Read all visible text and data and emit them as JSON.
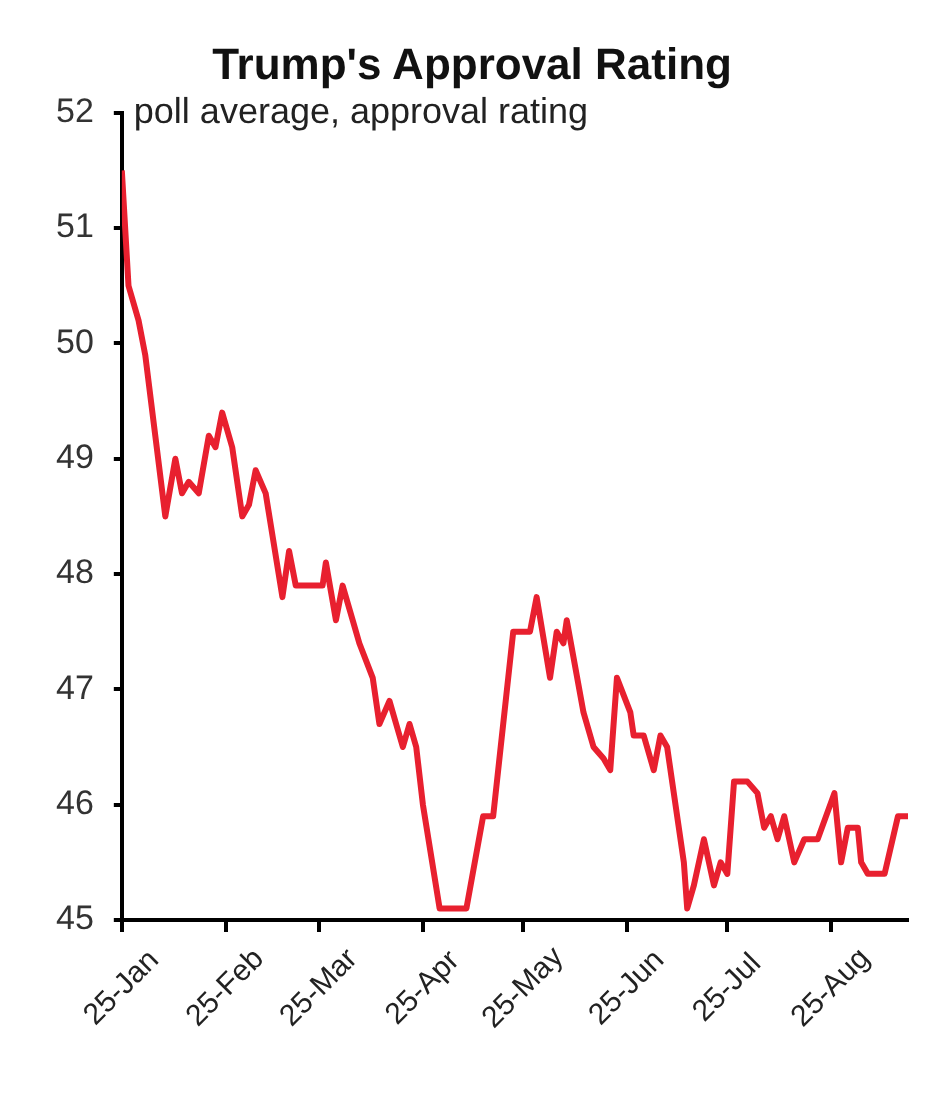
{
  "chart_data": {
    "type": "line",
    "title": "Trump's Approval Rating",
    "subtitle": "poll average, approval rating",
    "x": [
      "2025-01-01",
      "2025-01-03",
      "2025-01-06",
      "2025-01-08",
      "2025-01-11",
      "2025-01-14",
      "2025-01-17",
      "2025-01-19",
      "2025-01-21",
      "2025-01-24",
      "2025-01-27",
      "2025-01-29",
      "2025-01-31",
      "2025-02-03",
      "2025-02-06",
      "2025-02-08",
      "2025-02-10",
      "2025-02-13",
      "2025-02-18",
      "2025-02-20",
      "2025-02-22",
      "2025-03-02",
      "2025-03-03",
      "2025-03-06",
      "2025-03-08",
      "2025-03-11",
      "2025-03-13",
      "2025-03-17",
      "2025-03-19",
      "2025-03-22",
      "2025-03-24",
      "2025-03-26",
      "2025-03-28",
      "2025-03-30",
      "2025-04-01",
      "2025-04-06",
      "2025-04-09",
      "2025-04-14",
      "2025-04-19",
      "2025-04-22",
      "2025-04-28",
      "2025-04-30",
      "2025-05-03",
      "2025-05-05",
      "2025-05-09",
      "2025-05-11",
      "2025-05-13",
      "2025-05-14",
      "2025-05-19",
      "2025-05-22",
      "2025-05-25",
      "2025-05-27",
      "2025-05-29",
      "2025-06-02",
      "2025-06-03",
      "2025-06-06",
      "2025-06-09",
      "2025-06-11",
      "2025-06-13",
      "2025-06-18",
      "2025-06-19",
      "2025-06-21",
      "2025-06-24",
      "2025-06-27",
      "2025-06-29",
      "2025-07-01",
      "2025-07-03",
      "2025-07-07",
      "2025-07-10",
      "2025-07-12",
      "2025-07-14",
      "2025-07-16",
      "2025-07-18",
      "2025-07-21",
      "2025-07-24",
      "2025-07-28",
      "2025-08-02",
      "2025-08-04",
      "2025-08-06",
      "2025-08-09",
      "2025-08-10",
      "2025-08-12",
      "2025-08-17",
      "2025-08-21",
      "2025-08-24"
    ],
    "series": [
      {
        "color": "#e8202f",
        "values": [
          51.5,
          50.5,
          50.2,
          49.9,
          49.2,
          48.5,
          49.0,
          48.7,
          48.8,
          48.7,
          49.2,
          49.1,
          49.4,
          49.1,
          48.5,
          48.6,
          48.9,
          48.7,
          47.8,
          48.2,
          47.9,
          47.9,
          48.1,
          47.6,
          47.9,
          47.6,
          47.4,
          47.1,
          46.7,
          46.9,
          46.7,
          46.5,
          46.7,
          46.5,
          46.0,
          45.1,
          45.1,
          45.1,
          45.9,
          45.9,
          47.5,
          47.5,
          47.5,
          47.8,
          47.1,
          47.5,
          47.4,
          47.6,
          46.8,
          46.5,
          46.4,
          46.3,
          47.1,
          46.8,
          46.6,
          46.6,
          46.3,
          46.6,
          46.5,
          45.5,
          45.1,
          45.3,
          45.7,
          45.3,
          45.5,
          45.4,
          46.2,
          46.2,
          46.1,
          45.8,
          45.9,
          45.7,
          45.9,
          45.5,
          45.7,
          45.7,
          46.1,
          45.5,
          45.8,
          45.8,
          45.5,
          45.4,
          45.4,
          45.9,
          45.9
        ]
      }
    ],
    "xlim": [
      "2025-01-01",
      "2025-08-24"
    ],
    "xticks": [
      {
        "value": "2025-01-01",
        "label": "25-Jan"
      },
      {
        "value": "2025-02-01",
        "label": "25-Feb"
      },
      {
        "value": "2025-03-01",
        "label": "25-Mar"
      },
      {
        "value": "2025-04-01",
        "label": "25-Apr"
      },
      {
        "value": "2025-05-01",
        "label": "25-May"
      },
      {
        "value": "2025-06-01",
        "label": "25-Jun"
      },
      {
        "value": "2025-07-01",
        "label": "25-Jul"
      },
      {
        "value": "2025-08-01",
        "label": "25-Aug"
      }
    ],
    "ylim": [
      45,
      52
    ],
    "yticks": [
      45,
      46,
      47,
      48,
      49,
      50,
      51,
      52
    ],
    "grid": false,
    "legend": false,
    "marker": "none",
    "line_style": "solid"
  }
}
